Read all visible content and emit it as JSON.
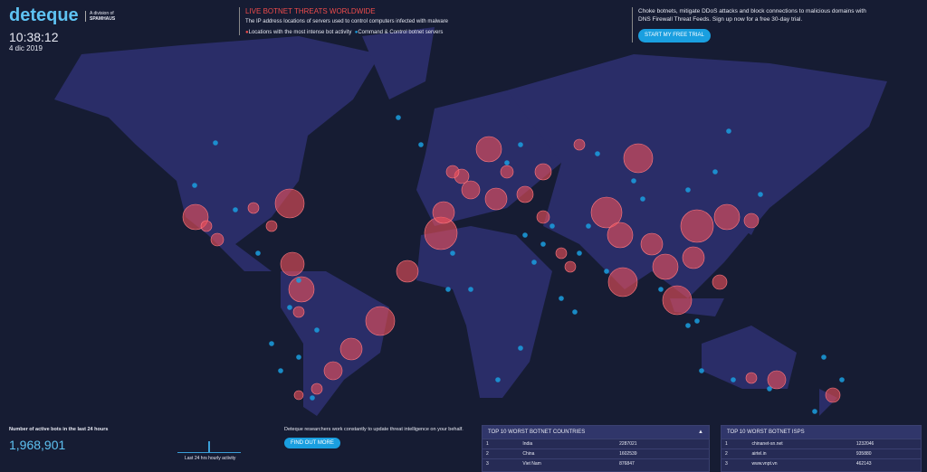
{
  "header": {
    "logo": "deteque",
    "division": "A division of",
    "parent": "SPAMHAUS",
    "time": "10:38:12",
    "date": "4 dic 2019"
  },
  "intro": {
    "title": "LIVE BOTNET THREATS WORLDWIDE",
    "subtitle": "The IP address locations of servers used to control computers infected with malware",
    "legend": [
      "Locations with the most intense bot activity",
      "Command & Control botnet servers"
    ]
  },
  "promo": {
    "text": "Choke botnets, mitigate DDoS attacks and block connections to malicious domains with DNS Firewall Threat Feeds. Sign up now for a free 30-day trial.",
    "button": "START MY FREE TRIAL"
  },
  "stats": {
    "label": "Number of active bots in the last 24 hours",
    "value": "1,968,901",
    "activity": "Last 24 hrs hourly activity"
  },
  "research": {
    "text": "Deteque researchers work constantly to update threat intelligence on your behalf.",
    "button": "FIND OUT MORE"
  },
  "countries": {
    "title": "TOP 10 WORST BOTNET COUNTRIES",
    "rows": [
      [
        "1",
        "India",
        "2287021"
      ],
      [
        "2",
        "China",
        "1602539"
      ],
      [
        "3",
        "Viet Nam",
        "876847"
      ]
    ]
  },
  "isps": {
    "title": "TOP 10 WORST BOTNET ISPS",
    "rows": [
      [
        "1",
        "chinanet-sn.net",
        "1232046"
      ],
      [
        "2",
        "airtel.in",
        "935880"
      ],
      [
        "3",
        "www.vnpt.vn",
        "462143"
      ]
    ]
  }
}
